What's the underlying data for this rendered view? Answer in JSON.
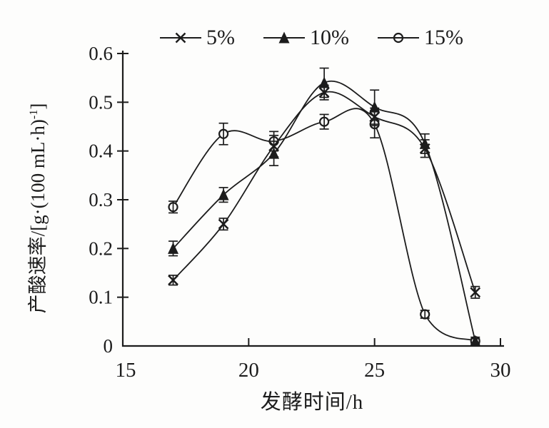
{
  "figure": {
    "background": "#fdfdfc",
    "ink": "#1c1c1c"
  },
  "chart_data": {
    "type": "line",
    "title": "",
    "xlabel": "发酵时间/h",
    "ylabel": "产酸速率/[g·(100 mL·h)-1]",
    "ylabel_parts": {
      "prefix": "产酸速率/[g·(100 mL·h)",
      "sup": "-1",
      "suffix": "]"
    },
    "xlim": [
      15,
      30
    ],
    "ylim": [
      0,
      0.6
    ],
    "x_ticks": [
      15,
      20,
      25,
      30
    ],
    "x_tick_labels": [
      "15",
      "20",
      "25",
      "30"
    ],
    "y_ticks": [
      0,
      0.1,
      0.2,
      0.3,
      0.4,
      0.5,
      0.6
    ],
    "y_tick_labels": [
      "0",
      "0.1",
      "0.2",
      "0.3",
      "0.4",
      "0.5",
      "0.6"
    ],
    "grid": false,
    "legend": {
      "position": "top"
    },
    "x": [
      17,
      19,
      21,
      23,
      25,
      27,
      29
    ],
    "series": [
      {
        "name": "5%",
        "marker": "x-cross",
        "values": [
          0.135,
          0.25,
          0.41,
          0.52,
          0.47,
          0.405,
          0.11
        ],
        "errors": [
          0.01,
          0.012,
          0.022,
          0.015,
          0.018,
          0.018,
          0.012
        ]
      },
      {
        "name": "10%",
        "marker": "filled-triangle",
        "values": [
          0.2,
          0.31,
          0.395,
          0.54,
          0.49,
          0.415,
          0.01
        ],
        "errors": [
          0.015,
          0.015,
          0.025,
          0.03,
          0.035,
          0.02,
          0.008
        ]
      },
      {
        "name": "15%",
        "marker": "open-circle",
        "values": [
          0.285,
          0.435,
          0.42,
          0.46,
          0.455,
          0.065,
          0.01
        ],
        "errors": [
          0.012,
          0.022,
          0.02,
          0.015,
          0.028,
          0.008,
          0.005
        ]
      }
    ]
  }
}
